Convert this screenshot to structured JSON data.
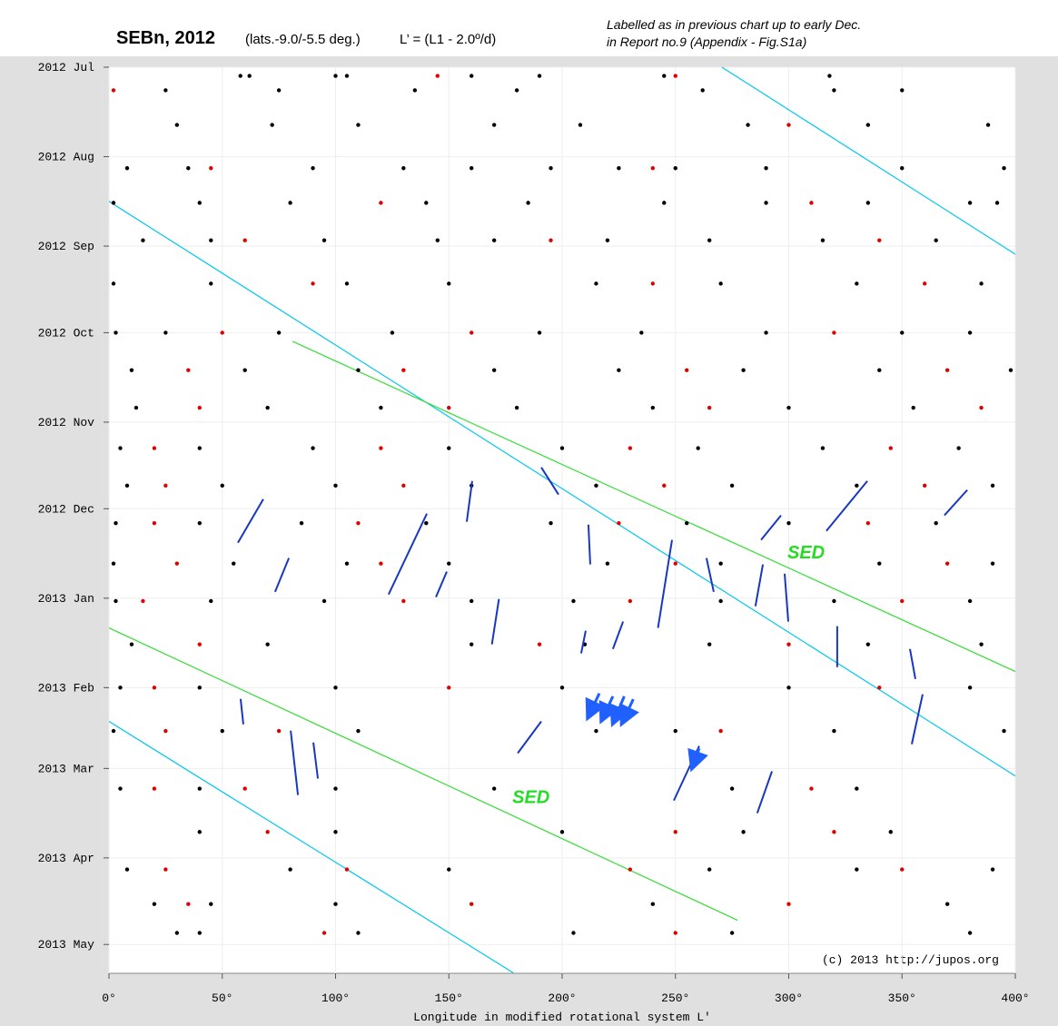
{
  "chart_data": {
    "type": "scatter",
    "title": "SEBn, 2012",
    "subtitle": "(lats.-9.0/-5.5 deg.)",
    "formula": "L’ = (L1 - 2.0º/d)",
    "note_lines": [
      "Labelled as in previous chart up to early Dec.",
      "in Report no.9 (Appendix - Fig.S1a)"
    ],
    "credit": "(c) 2013 http://jupos.org",
    "x_label": "Longitude in modified rotational system L'",
    "xlim": [
      0,
      400
    ],
    "xticks": [
      {
        "value": 0,
        "label": "0°"
      },
      {
        "value": 50,
        "label": "50°"
      },
      {
        "value": 100,
        "label": "100°"
      },
      {
        "value": 150,
        "label": "150°"
      },
      {
        "value": 200,
        "label": "200°"
      },
      {
        "value": 250,
        "label": "250°"
      },
      {
        "value": 300,
        "label": "300°"
      },
      {
        "value": 350,
        "label": "350°"
      },
      {
        "value": 400,
        "label": "400°"
      }
    ],
    "ylim": [
      0,
      314
    ],
    "y_inverted": true,
    "yticks": [
      {
        "value": 0,
        "label": "2012 Jul"
      },
      {
        "value": 31,
        "label": "2012 Aug"
      },
      {
        "value": 62,
        "label": "2012 Sep"
      },
      {
        "value": 92,
        "label": "2012 Oct"
      },
      {
        "value": 123,
        "label": "2012 Nov"
      },
      {
        "value": 153,
        "label": "2012 Dec"
      },
      {
        "value": 184,
        "label": "2013 Jan"
      },
      {
        "value": 215,
        "label": "2013 Feb"
      },
      {
        "value": 243,
        "label": "2013 Mar"
      },
      {
        "value": 274,
        "label": "2013 Apr"
      },
      {
        "value": 304,
        "label": "2013 May"
      }
    ],
    "series": [
      {
        "color": "#000000",
        "points": [
          [
            58,
            3
          ],
          [
            62,
            3
          ],
          [
            100,
            3
          ],
          [
            105,
            3
          ],
          [
            160,
            3
          ],
          [
            190,
            3
          ],
          [
            245,
            3
          ],
          [
            318,
            3
          ],
          [
            25,
            8
          ],
          [
            75,
            8
          ],
          [
            135,
            8
          ],
          [
            180,
            8
          ],
          [
            262,
            8
          ],
          [
            320,
            8
          ],
          [
            350,
            8
          ],
          [
            30,
            20
          ],
          [
            72,
            20
          ],
          [
            110,
            20
          ],
          [
            170,
            20
          ],
          [
            208,
            20
          ],
          [
            282,
            20
          ],
          [
            335,
            20
          ],
          [
            388,
            20
          ],
          [
            8,
            35
          ],
          [
            35,
            35
          ],
          [
            90,
            35
          ],
          [
            130,
            35
          ],
          [
            160,
            35
          ],
          [
            195,
            35
          ],
          [
            225,
            35
          ],
          [
            250,
            35
          ],
          [
            290,
            35
          ],
          [
            350,
            35
          ],
          [
            395,
            35
          ],
          [
            2,
            47
          ],
          [
            40,
            47
          ],
          [
            80,
            47
          ],
          [
            140,
            47
          ],
          [
            185,
            47
          ],
          [
            245,
            47
          ],
          [
            290,
            47
          ],
          [
            335,
            47
          ],
          [
            380,
            47
          ],
          [
            392,
            47
          ],
          [
            15,
            60
          ],
          [
            45,
            60
          ],
          [
            95,
            60
          ],
          [
            145,
            60
          ],
          [
            170,
            60
          ],
          [
            220,
            60
          ],
          [
            265,
            60
          ],
          [
            315,
            60
          ],
          [
            365,
            60
          ],
          [
            2,
            75
          ],
          [
            45,
            75
          ],
          [
            105,
            75
          ],
          [
            150,
            75
          ],
          [
            215,
            75
          ],
          [
            270,
            75
          ],
          [
            330,
            75
          ],
          [
            385,
            75
          ],
          [
            3,
            92
          ],
          [
            25,
            92
          ],
          [
            75,
            92
          ],
          [
            125,
            92
          ],
          [
            190,
            92
          ],
          [
            235,
            92
          ],
          [
            290,
            92
          ],
          [
            350,
            92
          ],
          [
            380,
            92
          ],
          [
            10,
            105
          ],
          [
            60,
            105
          ],
          [
            110,
            105
          ],
          [
            170,
            105
          ],
          [
            225,
            105
          ],
          [
            280,
            105
          ],
          [
            340,
            105
          ],
          [
            398,
            105
          ],
          [
            12,
            118
          ],
          [
            70,
            118
          ],
          [
            120,
            118
          ],
          [
            180,
            118
          ],
          [
            240,
            118
          ],
          [
            300,
            118
          ],
          [
            355,
            118
          ],
          [
            5,
            132
          ],
          [
            40,
            132
          ],
          [
            90,
            132
          ],
          [
            150,
            132
          ],
          [
            200,
            132
          ],
          [
            260,
            132
          ],
          [
            315,
            132
          ],
          [
            375,
            132
          ],
          [
            8,
            145
          ],
          [
            50,
            145
          ],
          [
            100,
            145
          ],
          [
            160,
            145
          ],
          [
            215,
            145
          ],
          [
            275,
            145
          ],
          [
            330,
            145
          ],
          [
            390,
            145
          ],
          [
            3,
            158
          ],
          [
            40,
            158
          ],
          [
            85,
            158
          ],
          [
            140,
            158
          ],
          [
            195,
            158
          ],
          [
            255,
            158
          ],
          [
            300,
            158
          ],
          [
            365,
            158
          ],
          [
            2,
            172
          ],
          [
            55,
            172
          ],
          [
            105,
            172
          ],
          [
            150,
            172
          ],
          [
            220,
            172
          ],
          [
            270,
            172
          ],
          [
            340,
            172
          ],
          [
            390,
            172
          ],
          [
            3,
            185
          ],
          [
            45,
            185
          ],
          [
            95,
            185
          ],
          [
            160,
            185
          ],
          [
            205,
            185
          ],
          [
            270,
            185
          ],
          [
            320,
            185
          ],
          [
            380,
            185
          ],
          [
            10,
            200
          ],
          [
            70,
            200
          ],
          [
            160,
            200
          ],
          [
            210,
            200
          ],
          [
            265,
            200
          ],
          [
            335,
            200
          ],
          [
            385,
            200
          ],
          [
            5,
            215
          ],
          [
            40,
            215
          ],
          [
            100,
            215
          ],
          [
            200,
            215
          ],
          [
            300,
            215
          ],
          [
            380,
            215
          ],
          [
            2,
            230
          ],
          [
            50,
            230
          ],
          [
            110,
            230
          ],
          [
            215,
            230
          ],
          [
            250,
            230
          ],
          [
            320,
            230
          ],
          [
            395,
            230
          ],
          [
            5,
            250
          ],
          [
            40,
            250
          ],
          [
            100,
            250
          ],
          [
            170,
            250
          ],
          [
            275,
            250
          ],
          [
            330,
            250
          ],
          [
            40,
            265
          ],
          [
            100,
            265
          ],
          [
            200,
            265
          ],
          [
            280,
            265
          ],
          [
            345,
            265
          ],
          [
            8,
            278
          ],
          [
            80,
            278
          ],
          [
            150,
            278
          ],
          [
            265,
            278
          ],
          [
            330,
            278
          ],
          [
            390,
            278
          ],
          [
            20,
            290
          ],
          [
            45,
            290
          ],
          [
            100,
            290
          ],
          [
            240,
            290
          ],
          [
            370,
            290
          ],
          [
            30,
            300
          ],
          [
            40,
            300
          ],
          [
            110,
            300
          ],
          [
            205,
            300
          ],
          [
            275,
            300
          ],
          [
            380,
            300
          ]
        ]
      },
      {
        "color": "#e00000",
        "points": [
          [
            145,
            3
          ],
          [
            250,
            3
          ],
          [
            2,
            8
          ],
          [
            300,
            20
          ],
          [
            45,
            35
          ],
          [
            240,
            35
          ],
          [
            120,
            47
          ],
          [
            310,
            47
          ],
          [
            60,
            60
          ],
          [
            195,
            60
          ],
          [
            340,
            60
          ],
          [
            90,
            75
          ],
          [
            240,
            75
          ],
          [
            360,
            75
          ],
          [
            50,
            92
          ],
          [
            160,
            92
          ],
          [
            320,
            92
          ],
          [
            35,
            105
          ],
          [
            130,
            105
          ],
          [
            255,
            105
          ],
          [
            370,
            105
          ],
          [
            40,
            118
          ],
          [
            150,
            118
          ],
          [
            265,
            118
          ],
          [
            385,
            118
          ],
          [
            20,
            132
          ],
          [
            120,
            132
          ],
          [
            230,
            132
          ],
          [
            345,
            132
          ],
          [
            25,
            145
          ],
          [
            130,
            145
          ],
          [
            245,
            145
          ],
          [
            360,
            145
          ],
          [
            20,
            158
          ],
          [
            110,
            158
          ],
          [
            225,
            158
          ],
          [
            335,
            158
          ],
          [
            30,
            172
          ],
          [
            120,
            172
          ],
          [
            250,
            172
          ],
          [
            370,
            172
          ],
          [
            15,
            185
          ],
          [
            130,
            185
          ],
          [
            230,
            185
          ],
          [
            350,
            185
          ],
          [
            40,
            200
          ],
          [
            190,
            200
          ],
          [
            300,
            200
          ],
          [
            20,
            215
          ],
          [
            150,
            215
          ],
          [
            340,
            215
          ],
          [
            25,
            230
          ],
          [
            75,
            230
          ],
          [
            270,
            230
          ],
          [
            20,
            250
          ],
          [
            60,
            250
          ],
          [
            310,
            250
          ],
          [
            70,
            265
          ],
          [
            250,
            265
          ],
          [
            320,
            265
          ],
          [
            25,
            278
          ],
          [
            105,
            278
          ],
          [
            230,
            278
          ],
          [
            350,
            278
          ],
          [
            35,
            290
          ],
          [
            160,
            290
          ],
          [
            300,
            290
          ],
          [
            95,
            300
          ],
          [
            250,
            300
          ]
        ]
      }
    ],
    "lines": [
      {
        "color": "#00c8f0",
        "x": [
          270.5,
          400
        ],
        "y": [
          0,
          64.8
        ]
      },
      {
        "color": "#00c8f0",
        "x": [
          0,
          400
        ],
        "y": [
          46.5,
          245.6
        ]
      },
      {
        "color": "#00c8f0",
        "x": [
          0,
          178.4
        ],
        "y": [
          226.7,
          313.8
        ]
      },
      {
        "color": "#33dd33",
        "x": [
          81,
          400
        ],
        "y": [
          95,
          209.4
        ]
      },
      {
        "color": "#33dd33",
        "x": [
          0,
          277.4
        ],
        "y": [
          194.3,
          295.6
        ]
      }
    ],
    "annotations": [
      {
        "text": "SED",
        "x": 299.4,
        "y": 168,
        "color": "#22dd22"
      },
      {
        "text": "SED",
        "x": 178,
        "y": 252.8,
        "color": "#22dd22"
      }
    ],
    "tracks_color": "#1838c0",
    "tracks": [
      [
        56.9,
        164.8,
        68.1,
        149.7
      ],
      [
        73.3,
        181.8,
        79.4,
        170.1
      ],
      [
        123.4,
        182.7,
        140.3,
        154.7
      ],
      [
        144.3,
        183.6,
        149.1,
        174.8
      ],
      [
        169,
        200,
        172.1,
        184.3
      ],
      [
        212.4,
        172.3,
        211.6,
        158.5
      ],
      [
        242.3,
        194.3,
        248.5,
        163.8
      ],
      [
        266.9,
        181.8,
        263.7,
        170.1
      ],
      [
        285.3,
        186.8,
        288.6,
        172.3
      ],
      [
        299.8,
        192.1,
        298.2,
        175.5
      ],
      [
        321.4,
        207.9,
        321.4,
        193.7
      ],
      [
        355.9,
        212,
        353.5,
        201.6
      ],
      [
        354.3,
        234.6,
        359.1,
        217.3
      ],
      [
        59.3,
        227.7,
        58.1,
        218.9
      ],
      [
        83.4,
        252.2,
        80.2,
        229.9
      ],
      [
        92.2,
        246.5,
        90.2,
        234
      ],
      [
        180.4,
        237.7,
        190.8,
        226.7
      ],
      [
        249.3,
        254.1,
        260.5,
        235.2
      ],
      [
        286.1,
        258.5,
        292.6,
        244
      ],
      [
        208.4,
        203.1,
        210.4,
        195.3
      ],
      [
        222.4,
        201.6,
        226.9,
        192.1
      ],
      [
        316.6,
        160.7,
        334.7,
        143.4
      ],
      [
        368.7,
        155.3,
        378.8,
        146.5
      ],
      [
        287.8,
        163.8,
        296.6,
        155.3
      ],
      [
        190.8,
        138.7,
        198.4,
        148.1
      ],
      [
        157.9,
        157.5,
        160.3,
        143.4
      ]
    ],
    "arrows_color": "#2060ff",
    "arrows": [
      [
        216.4,
        217,
        211.6,
        225
      ],
      [
        222.4,
        218,
        217.6,
        226
      ],
      [
        227.4,
        218,
        222.6,
        227
      ],
      [
        231.4,
        219,
        226.6,
        227
      ],
      [
        260.5,
        236,
        257.5,
        242.5
      ]
    ]
  }
}
